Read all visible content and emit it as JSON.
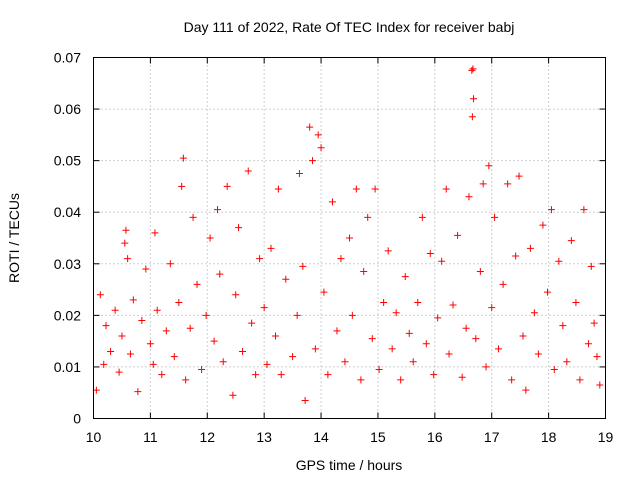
{
  "chart_data": {
    "type": "scatter",
    "title": "Day 111 of 2022, Rate Of TEC Index for receiver babj",
    "xlabel": "GPS time / hours",
    "ylabel": "ROTI / TECUs",
    "xlim": [
      10,
      19
    ],
    "ylim": [
      0,
      0.07
    ],
    "x_ticks": [
      10,
      11,
      12,
      13,
      14,
      15,
      16,
      17,
      18,
      19
    ],
    "x_tick_labels": [
      "10",
      "11",
      "12",
      "13",
      "14",
      "15",
      "16",
      "17",
      "18",
      "19"
    ],
    "y_ticks": [
      0,
      0.01,
      0.02,
      0.03,
      0.04,
      0.05,
      0.06,
      0.07
    ],
    "y_tick_labels": [
      "0",
      "0.01",
      "0.02",
      "0.03",
      "0.04",
      "0.05",
      "0.06",
      "0.07"
    ],
    "grid": true,
    "marker": "+",
    "color": "#ff0000",
    "series": [
      {
        "name": "ROTI",
        "points": [
          [
            10.05,
            0.0055
          ],
          [
            10.12,
            0.024
          ],
          [
            10.18,
            0.0105
          ],
          [
            10.22,
            0.018
          ],
          [
            10.3,
            0.013
          ],
          [
            10.38,
            0.021
          ],
          [
            10.45,
            0.009
          ],
          [
            10.5,
            0.016
          ],
          [
            10.55,
            0.034
          ],
          [
            10.57,
            0.0365
          ],
          [
            10.6,
            0.031
          ],
          [
            10.65,
            0.0125
          ],
          [
            10.7,
            0.023
          ],
          [
            10.78,
            0.0052
          ],
          [
            10.85,
            0.019
          ],
          [
            10.92,
            0.029
          ],
          [
            11.0,
            0.0145
          ],
          [
            11.05,
            0.0105
          ],
          [
            11.08,
            0.036
          ],
          [
            11.12,
            0.021
          ],
          [
            11.2,
            0.0085
          ],
          [
            11.28,
            0.017
          ],
          [
            11.35,
            0.03
          ],
          [
            11.42,
            0.012
          ],
          [
            11.5,
            0.0225
          ],
          [
            11.55,
            0.045
          ],
          [
            11.58,
            0.0505
          ],
          [
            11.62,
            0.0075
          ],
          [
            11.7,
            0.0175
          ],
          [
            11.75,
            0.039
          ],
          [
            11.82,
            0.026
          ],
          [
            11.9,
            0.0095
          ],
          [
            11.98,
            0.02
          ],
          [
            12.05,
            0.035
          ],
          [
            12.12,
            0.015
          ],
          [
            12.18,
            0.0405
          ],
          [
            12.22,
            0.028
          ],
          [
            12.28,
            0.011
          ],
          [
            12.35,
            0.045
          ],
          [
            12.45,
            0.0045
          ],
          [
            12.5,
            0.024
          ],
          [
            12.55,
            0.037
          ],
          [
            12.62,
            0.013
          ],
          [
            12.72,
            0.048
          ],
          [
            12.78,
            0.0185
          ],
          [
            12.85,
            0.0085
          ],
          [
            12.92,
            0.031
          ],
          [
            13.0,
            0.0215
          ],
          [
            13.05,
            0.0105
          ],
          [
            13.12,
            0.033
          ],
          [
            13.2,
            0.016
          ],
          [
            13.25,
            0.0445
          ],
          [
            13.3,
            0.0085
          ],
          [
            13.38,
            0.027
          ],
          [
            13.5,
            0.012
          ],
          [
            13.58,
            0.02
          ],
          [
            13.62,
            0.0475
          ],
          [
            13.68,
            0.0295
          ],
          [
            13.72,
            0.0035
          ],
          [
            13.8,
            0.0565
          ],
          [
            13.85,
            0.05
          ],
          [
            13.9,
            0.0135
          ],
          [
            13.95,
            0.055
          ],
          [
            14.0,
            0.0525
          ],
          [
            14.05,
            0.0245
          ],
          [
            14.12,
            0.0085
          ],
          [
            14.2,
            0.042
          ],
          [
            14.28,
            0.017
          ],
          [
            14.35,
            0.031
          ],
          [
            14.42,
            0.011
          ],
          [
            14.5,
            0.035
          ],
          [
            14.55,
            0.02
          ],
          [
            14.62,
            0.0445
          ],
          [
            14.7,
            0.0075
          ],
          [
            14.75,
            0.0285
          ],
          [
            14.82,
            0.039
          ],
          [
            14.9,
            0.0155
          ],
          [
            14.95,
            0.0445
          ],
          [
            15.02,
            0.0095
          ],
          [
            15.1,
            0.0225
          ],
          [
            15.18,
            0.0325
          ],
          [
            15.25,
            0.0135
          ],
          [
            15.32,
            0.0205
          ],
          [
            15.4,
            0.0075
          ],
          [
            15.48,
            0.0275
          ],
          [
            15.55,
            0.0165
          ],
          [
            15.62,
            0.011
          ],
          [
            15.7,
            0.0225
          ],
          [
            15.78,
            0.039
          ],
          [
            15.85,
            0.0145
          ],
          [
            15.92,
            0.032
          ],
          [
            15.98,
            0.0085
          ],
          [
            16.05,
            0.0195
          ],
          [
            16.12,
            0.0305
          ],
          [
            16.2,
            0.0445
          ],
          [
            16.25,
            0.0125
          ],
          [
            16.32,
            0.022
          ],
          [
            16.4,
            0.0355
          ],
          [
            16.48,
            0.008
          ],
          [
            16.55,
            0.0175
          ],
          [
            16.6,
            0.043
          ],
          [
            16.65,
            0.0675
          ],
          [
            16.67,
            0.0678
          ],
          [
            16.68,
            0.062
          ],
          [
            16.66,
            0.0585
          ],
          [
            16.72,
            0.0155
          ],
          [
            16.8,
            0.0285
          ],
          [
            16.85,
            0.0455
          ],
          [
            16.9,
            0.01
          ],
          [
            16.95,
            0.049
          ],
          [
            17.0,
            0.0215
          ],
          [
            17.05,
            0.039
          ],
          [
            17.12,
            0.0135
          ],
          [
            17.2,
            0.026
          ],
          [
            17.28,
            0.0455
          ],
          [
            17.35,
            0.0075
          ],
          [
            17.42,
            0.0315
          ],
          [
            17.48,
            0.047
          ],
          [
            17.55,
            0.016
          ],
          [
            17.6,
            0.0055
          ],
          [
            17.68,
            0.033
          ],
          [
            17.75,
            0.0205
          ],
          [
            17.82,
            0.0125
          ],
          [
            17.9,
            0.0375
          ],
          [
            17.98,
            0.0245
          ],
          [
            18.05,
            0.0405
          ],
          [
            18.1,
            0.0095
          ],
          [
            18.18,
            0.0305
          ],
          [
            18.25,
            0.018
          ],
          [
            18.32,
            0.011
          ],
          [
            18.4,
            0.0345
          ],
          [
            18.48,
            0.0225
          ],
          [
            18.55,
            0.0075
          ],
          [
            18.62,
            0.0405
          ],
          [
            18.7,
            0.0145
          ],
          [
            18.75,
            0.0295
          ],
          [
            18.8,
            0.0185
          ],
          [
            18.85,
            0.012
          ],
          [
            18.9,
            0.0065
          ]
        ]
      }
    ]
  }
}
